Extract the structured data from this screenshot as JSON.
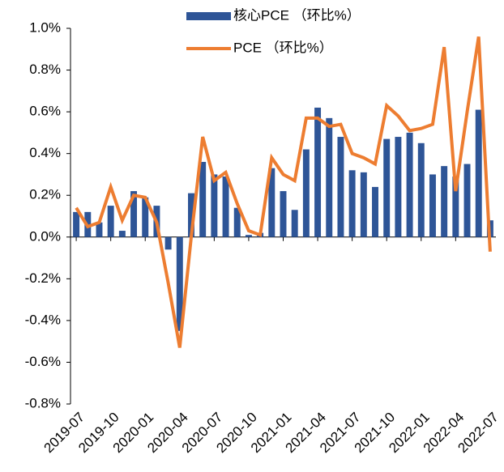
{
  "chart_data": {
    "type": "bar-line",
    "categories": [
      "2019-07",
      null,
      null,
      "2019-10",
      null,
      null,
      "2020-01",
      null,
      null,
      "2020-04",
      null,
      null,
      "2020-07",
      null,
      null,
      "2020-10",
      null,
      null,
      "2021-01",
      null,
      null,
      "2021-04",
      null,
      null,
      "2021-07",
      null,
      null,
      "2021-10",
      null,
      null,
      "2022-01",
      null,
      null,
      "2022-04",
      null,
      null,
      "2022-07"
    ],
    "series": [
      {
        "name": "核心PCE （环比%）",
        "type": "bar",
        "color": "#2e5597",
        "values": [
          0.12,
          0.12,
          0.07,
          0.15,
          0.03,
          0.22,
          0.19,
          0.15,
          -0.06,
          -0.45,
          0.21,
          0.36,
          0.3,
          0.29,
          0.14,
          0.01,
          0.02,
          0.33,
          0.22,
          0.13,
          0.42,
          0.62,
          0.57,
          0.48,
          0.32,
          0.31,
          0.24,
          0.47,
          0.48,
          0.5,
          0.45,
          0.3,
          0.34,
          0.29,
          0.35,
          0.61,
          0.08
        ]
      },
      {
        "name": "PCE （环比%）",
        "type": "line",
        "color": "#ed7d31",
        "values": [
          0.14,
          0.05,
          0.07,
          0.24,
          0.08,
          0.2,
          0.19,
          0.07,
          -0.22,
          -0.53,
          0.0,
          0.48,
          0.27,
          0.31,
          0.16,
          0.03,
          0.01,
          0.38,
          0.3,
          0.27,
          0.57,
          0.57,
          0.53,
          0.54,
          0.4,
          0.38,
          0.35,
          0.63,
          0.58,
          0.51,
          0.52,
          0.54,
          0.91,
          0.22,
          0.6,
          0.96,
          -0.07
        ]
      }
    ],
    "ylim": [
      -0.8,
      1.0
    ],
    "yticks": [
      {
        "value": -0.8,
        "label": "-0.8%"
      },
      {
        "value": -0.6,
        "label": "-0.6%"
      },
      {
        "value": -0.4,
        "label": "-0.4%"
      },
      {
        "value": -0.2,
        "label": "-0.2%"
      },
      {
        "value": 0.0,
        "label": "0.0%"
      },
      {
        "value": 0.2,
        "label": "0.2%"
      },
      {
        "value": 0.4,
        "label": "0.4%"
      },
      {
        "value": 0.6,
        "label": "0.6%"
      },
      {
        "value": 0.8,
        "label": "0.8%"
      },
      {
        "value": 1.0,
        "label": "1.0%"
      }
    ],
    "legend": "top"
  }
}
